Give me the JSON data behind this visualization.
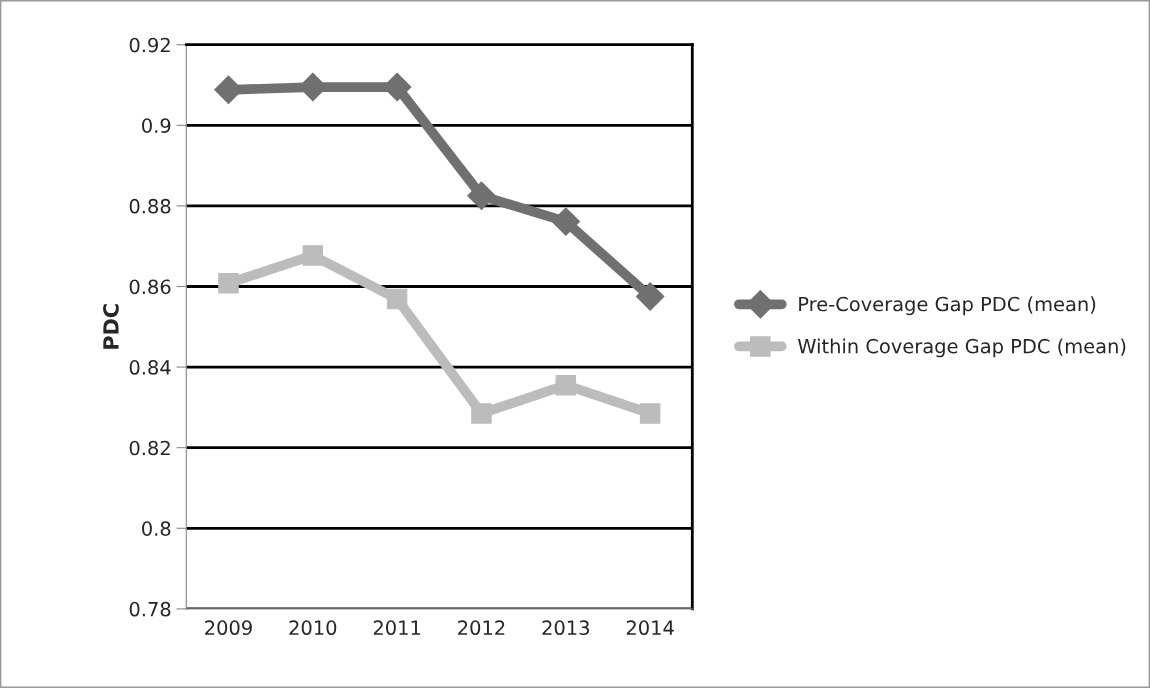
{
  "chart_data": {
    "type": "line",
    "ylabel": "PDC",
    "categories": [
      "2009",
      "2010",
      "2011",
      "2012",
      "2013",
      "2014"
    ],
    "series": [
      {
        "name": "Pre-Coverage Gap PDC (mean)",
        "color": "#707070",
        "marker": "diamond",
        "values": [
          0.9088,
          0.9095,
          0.9095,
          0.8825,
          0.8761,
          0.8575
        ]
      },
      {
        "name": "Within Coverage Gap PDC (mean)",
        "color": "#bcbcbc",
        "marker": "square",
        "values": [
          0.8608,
          0.8677,
          0.8569,
          0.8285,
          0.8355,
          0.8285
        ]
      }
    ],
    "ylim": [
      0.78,
      0.92
    ],
    "yticks": [
      0.78,
      0.8,
      0.82,
      0.84,
      0.86,
      0.88,
      0.9,
      0.92
    ],
    "grid": "y",
    "legend": "right"
  }
}
